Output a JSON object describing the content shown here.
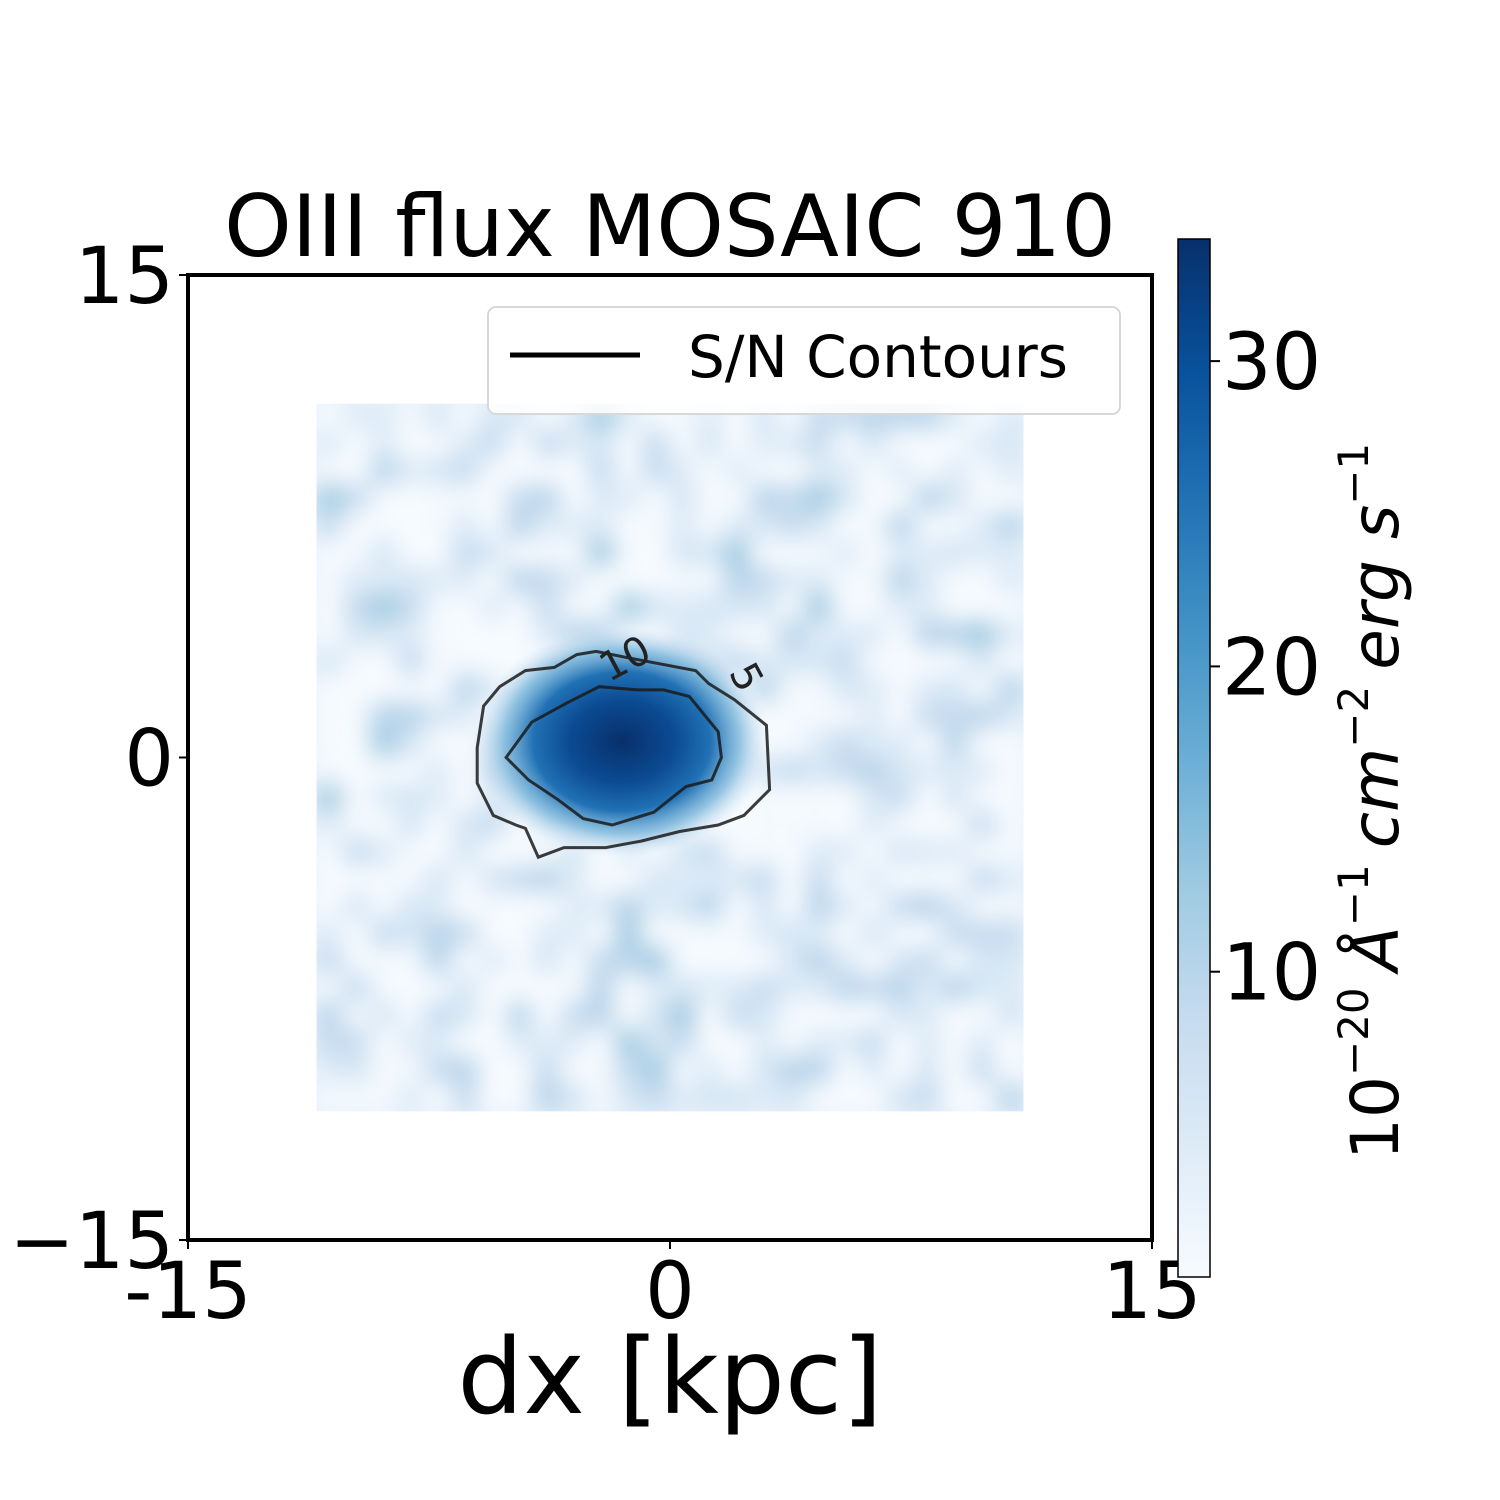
{
  "chart_data": {
    "type": "heatmap",
    "title": "OIII flux MOSAIC 910",
    "xlabel": "dx [kpc]",
    "xlim": [
      -15,
      15
    ],
    "ylim": [
      -15,
      15
    ],
    "x_ticks": [
      "-15",
      "0",
      "15"
    ],
    "y_ticks": [
      "−15",
      "0",
      "15"
    ],
    "image_extent": {
      "x": [
        -11,
        11
      ],
      "y": [
        -11,
        11
      ]
    },
    "colormap": "Blues",
    "colorbar": {
      "label_base": "10",
      "label_exp": "−20",
      "label_unit1": "Å",
      "label_exp1": "−1",
      "label_unit2": "cm",
      "label_exp2": "−2",
      "label_unit3": "erg s",
      "label_exp3": "−1",
      "range": [
        0,
        34
      ],
      "ticks": [
        {
          "value": 10,
          "label": "10"
        },
        {
          "value": 20,
          "label": "20"
        },
        {
          "value": 30,
          "label": "30"
        }
      ]
    },
    "emission_peak": {
      "x": -1.5,
      "y": 0.5,
      "peak_flux": 34
    },
    "legend": {
      "label": "S/N Contours",
      "placement": "top-right"
    },
    "contours": [
      {
        "level": 5,
        "label": "5",
        "points": [
          [
            -4.1,
            -3.1
          ],
          [
            -3.3,
            -2.8
          ],
          [
            -2.0,
            -2.8
          ],
          [
            -0.9,
            -2.6
          ],
          [
            0.3,
            -2.3
          ],
          [
            1.5,
            -2.1
          ],
          [
            2.3,
            -1.8
          ],
          [
            3.1,
            -1.0
          ],
          [
            3.0,
            1.0
          ],
          [
            2.0,
            1.8
          ],
          [
            1.2,
            2.3
          ],
          [
            0.8,
            2.7
          ],
          [
            -1.3,
            3.1
          ],
          [
            -2.3,
            3.3
          ],
          [
            -2.9,
            3.2
          ],
          [
            -3.6,
            2.8
          ],
          [
            -4.5,
            2.7
          ],
          [
            -5.3,
            2.2
          ],
          [
            -5.8,
            1.6
          ],
          [
            -6.0,
            0.3
          ],
          [
            -6.0,
            -0.8
          ],
          [
            -5.5,
            -1.8
          ],
          [
            -4.8,
            -2.1
          ],
          [
            -4.5,
            -2.2
          ],
          [
            -4.1,
            -3.1
          ]
        ]
      },
      {
        "level": 10,
        "label": "10",
        "points": [
          [
            -5.1,
            0.0
          ],
          [
            -4.4,
            -0.7
          ],
          [
            -3.5,
            -1.3
          ],
          [
            -2.7,
            -1.9
          ],
          [
            -1.8,
            -2.1
          ],
          [
            -0.5,
            -1.7
          ],
          [
            0.5,
            -0.9
          ],
          [
            1.3,
            -0.7
          ],
          [
            1.6,
            0.0
          ],
          [
            1.5,
            0.8
          ],
          [
            0.6,
            1.9
          ],
          [
            -0.2,
            2.1
          ],
          [
            -1.0,
            2.1
          ],
          [
            -2.2,
            2.2
          ],
          [
            -3.2,
            1.7
          ],
          [
            -4.3,
            1.1
          ],
          [
            -5.1,
            0.0
          ]
        ]
      }
    ]
  }
}
